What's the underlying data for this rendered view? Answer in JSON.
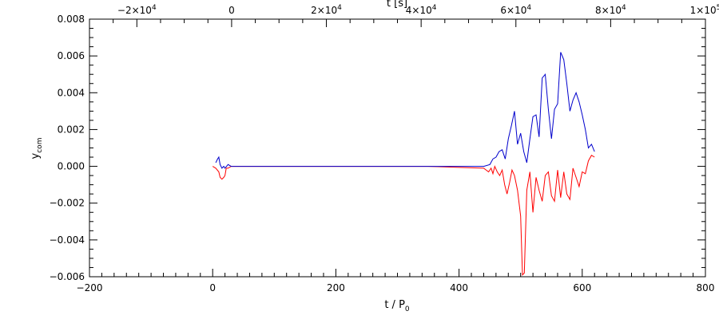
{
  "chart_data": {
    "type": "line",
    "xlabel_main": "t / P",
    "xlabel_sub": "0",
    "ylabel_main": "y",
    "ylabel_sub": "com",
    "top_axis_label": "t [s]",
    "xlim": [
      -200,
      800
    ],
    "ylim": [
      -0.006,
      0.008
    ],
    "top_xlim": [
      -30000,
      100000
    ],
    "x_ticks": [
      -200,
      0,
      200,
      400,
      600,
      800
    ],
    "x_tick_labels": [
      "−200",
      "0",
      "200",
      "400",
      "600",
      "800"
    ],
    "y_ticks": [
      -0.006,
      -0.004,
      -0.002,
      0.0,
      0.002,
      0.004,
      0.006,
      0.008
    ],
    "y_tick_labels": [
      "−0.006",
      "−0.004",
      "−0.002",
      "0.000",
      "0.002",
      "0.004",
      "0.006",
      "0.008"
    ],
    "top_ticks": [
      {
        "value": -20000,
        "base": "−2×10",
        "exp": "4"
      },
      {
        "value": 0,
        "base": "0",
        "exp": ""
      },
      {
        "value": 20000,
        "base": "2×10",
        "exp": "4"
      },
      {
        "value": 40000,
        "base": "4×10",
        "exp": "4"
      },
      {
        "value": 60000,
        "base": "6×10",
        "exp": "4"
      },
      {
        "value": 80000,
        "base": "8×10",
        "exp": "4"
      },
      {
        "value": 100000,
        "base": "1×10",
        "exp": "5"
      }
    ],
    "series": [
      {
        "color": "#ff0000",
        "x": [
          0,
          5,
          10,
          12,
          15,
          18,
          20,
          22,
          25,
          30,
          40,
          80,
          150,
          250,
          350,
          440,
          448,
          452,
          455,
          458,
          462,
          466,
          470,
          474,
          478,
          482,
          486,
          490,
          495,
          500,
          503,
          506,
          510,
          515,
          520,
          525,
          530,
          535,
          540,
          545,
          550,
          555,
          560,
          565,
          570,
          575,
          580,
          585,
          590,
          595,
          600,
          605,
          610,
          615,
          620
        ],
        "values": [
          0.0,
          -0.0001,
          -0.0003,
          -0.0006,
          -0.0007,
          -0.0006,
          -0.0005,
          -0.0001,
          -0.0001,
          0.0,
          0.0,
          0.0,
          0.0,
          0.0,
          0.0,
          -0.0001,
          -0.0003,
          -0.0001,
          -0.0004,
          0.0,
          -0.0003,
          -0.0005,
          -0.0002,
          -0.001,
          -0.0015,
          -0.0009,
          -0.0002,
          -0.0005,
          -0.0013,
          -0.0027,
          -0.0059,
          -0.0058,
          -0.0013,
          -0.0003,
          -0.0025,
          -0.0006,
          -0.0013,
          -0.0019,
          -0.0005,
          -0.0003,
          -0.0016,
          -0.0019,
          -0.0002,
          -0.0017,
          -0.0003,
          -0.0015,
          -0.0018,
          -0.0001,
          -0.0006,
          -0.0011,
          -0.0003,
          -0.0004,
          0.0003,
          0.0006,
          0.0005
        ]
      },
      {
        "color": "#0000cc",
        "x": [
          5,
          8,
          10,
          12,
          15,
          18,
          20,
          25,
          30,
          40,
          80,
          150,
          250,
          350,
          440,
          450,
          455,
          460,
          465,
          470,
          475,
          480,
          485,
          490,
          495,
          500,
          505,
          510,
          515,
          520,
          525,
          530,
          535,
          540,
          545,
          550,
          555,
          560,
          565,
          570,
          575,
          580,
          585,
          590,
          595,
          600,
          605,
          610,
          615,
          620
        ],
        "values": [
          0.0002,
          0.0004,
          0.0005,
          0.0001,
          -0.0001,
          0.0,
          -0.0001,
          0.0001,
          0.0,
          0.0,
          0.0,
          0.0,
          0.0,
          0.0,
          0.0,
          0.0001,
          0.0004,
          0.0005,
          0.0008,
          0.0009,
          0.0004,
          0.0015,
          0.0022,
          0.003,
          0.0012,
          0.0018,
          0.0008,
          0.0002,
          0.0015,
          0.0027,
          0.0028,
          0.0016,
          0.0048,
          0.005,
          0.0031,
          0.0015,
          0.0031,
          0.0034,
          0.0062,
          0.0058,
          0.0045,
          0.003,
          0.0036,
          0.004,
          0.0035,
          0.0028,
          0.002,
          0.001,
          0.0012,
          0.0008
        ]
      }
    ]
  }
}
